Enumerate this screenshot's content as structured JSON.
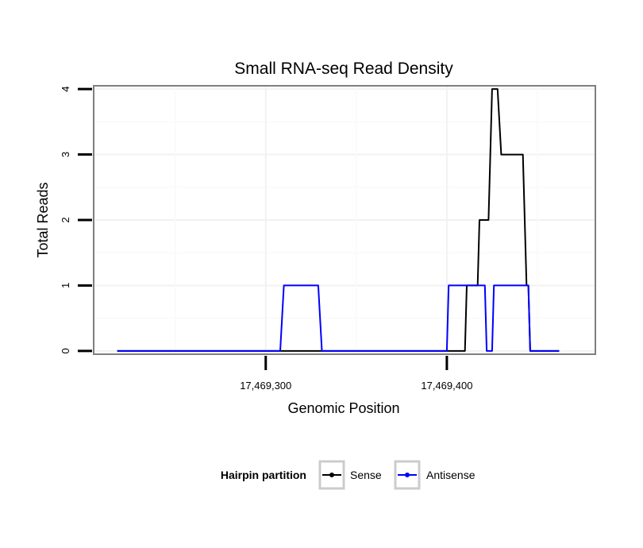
{
  "chart_data": {
    "type": "line",
    "title": "Small RNA-seq Read Density",
    "xlabel": "Genomic Position",
    "ylabel": "Total Reads",
    "xlim": [
      17469205,
      17469482
    ],
    "ylim": [
      -0.05,
      4.05
    ],
    "x_ticks": [
      17469300,
      17469400
    ],
    "x_tick_labels": [
      "17,469,300",
      "17,469,400"
    ],
    "y_ticks": [
      0,
      1,
      2,
      3,
      4
    ],
    "y_tick_labels": [
      "0",
      "1",
      "2",
      "3",
      "4"
    ],
    "grid": true,
    "legend": {
      "title": "Hairpin partition",
      "position": "bottom",
      "entries": [
        "Sense",
        "Antisense"
      ]
    },
    "series": [
      {
        "name": "Sense",
        "color": "#000000",
        "points": [
          [
            17469218,
            0
          ],
          [
            17469410,
            0
          ],
          [
            17469411,
            1
          ],
          [
            17469417,
            1
          ],
          [
            17469418,
            2
          ],
          [
            17469423,
            2
          ],
          [
            17469425,
            4
          ],
          [
            17469428,
            4
          ],
          [
            17469430,
            3
          ],
          [
            17469442,
            3
          ],
          [
            17469444,
            1
          ],
          [
            17469445,
            1
          ],
          [
            17469446,
            0
          ],
          [
            17469462,
            0
          ]
        ]
      },
      {
        "name": "Antisense",
        "color": "#0000ff",
        "points": [
          [
            17469218,
            0
          ],
          [
            17469308,
            0
          ],
          [
            17469310,
            1
          ],
          [
            17469329,
            1
          ],
          [
            17469331,
            0
          ],
          [
            17469400,
            0
          ],
          [
            17469401,
            1
          ],
          [
            17469421,
            1
          ],
          [
            17469422,
            0
          ],
          [
            17469425,
            0
          ],
          [
            17469426,
            1
          ],
          [
            17469445,
            1
          ],
          [
            17469446,
            0
          ],
          [
            17469462,
            0
          ]
        ]
      }
    ]
  }
}
